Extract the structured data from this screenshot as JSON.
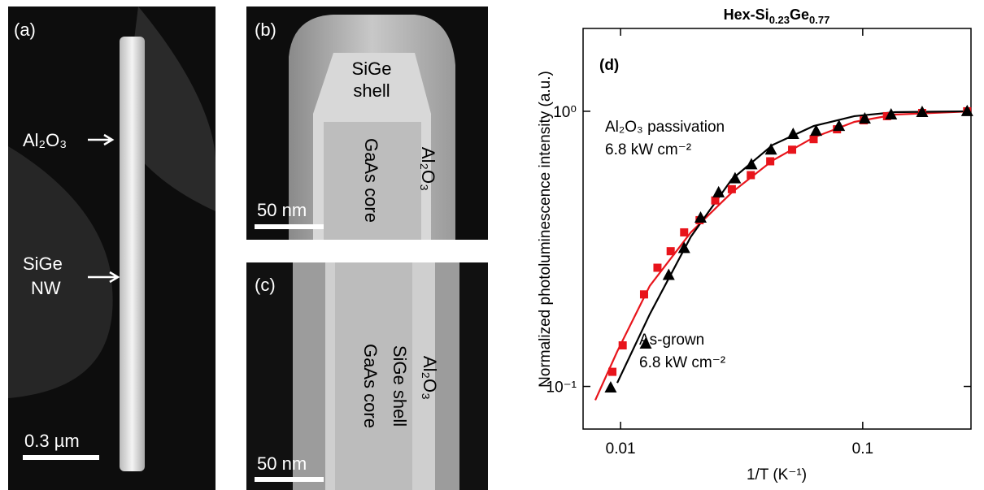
{
  "figure": {
    "panel_a": {
      "label": "(a)",
      "shell": "Al₂O₃",
      "wire_1": "SiGe",
      "wire_2": "NW",
      "scale": "0.3 µm"
    },
    "panel_b": {
      "label": "(b)",
      "shell_1": "SiGe",
      "shell_2": "shell",
      "core": "GaAs core",
      "oxide": "Al₂O₃",
      "scale": "50 nm"
    },
    "panel_c": {
      "label": "(c)",
      "oxide": "Al₂O₃",
      "shell": "SiGe shell",
      "core": "GaAs core",
      "scale": "50 nm"
    }
  },
  "chart_data": {
    "type": "scatter",
    "title": [
      "Hex-Si",
      "0.23",
      "Ge",
      "0.77"
    ],
    "panel_label": "(d)",
    "x_label": "1/T (K⁻¹)",
    "y_label": "Normalized photoluminescence intensity (a.u.)",
    "log_x": true,
    "log_y": true,
    "xlim": [
      0.007,
      0.28
    ],
    "ylim": [
      0.07,
      2
    ],
    "xticks": [
      0.01,
      0.1
    ],
    "yticks": [
      {
        "value": 0.1,
        "label": "10⁻¹"
      },
      {
        "value": 1,
        "label": "10⁰"
      }
    ],
    "annotations": [
      {
        "lines": [
          "Al₂O₃ passivation",
          "6.8 kW cm⁻²"
        ],
        "color": "#e8141b"
      },
      {
        "lines": [
          "As-grown",
          "6.8 kW cm⁻²"
        ],
        "color": "#000000"
      }
    ],
    "series": [
      {
        "color": "#e8141b",
        "x": [
          0.00786,
          0.00969,
          0.0132,
          0.0195,
          0.0288,
          0.0425,
          0.0627,
          0.0924,
          0.136,
          0.284
        ],
        "values": [
          0.0892,
          0.134,
          0.232,
          0.363,
          0.507,
          0.663,
          0.803,
          0.915,
          0.973,
          1.0
        ]
      },
      {
        "color": "#000000",
        "x": [
          0.00969,
          0.0132,
          0.0195,
          0.0288,
          0.0425,
          0.0627,
          0.0924,
          0.136,
          0.284
        ],
        "values": [
          0.103,
          0.183,
          0.35,
          0.566,
          0.755,
          0.884,
          0.96,
          0.993,
          1.0
        ]
      },
      {
        "color": "#e8141b",
        "marker": "square",
        "x": [
          0.00925,
          0.0102,
          0.0125,
          0.0142,
          0.0161,
          0.0183,
          0.0212,
          0.0246,
          0.0288,
          0.0345,
          0.0415,
          0.0511,
          0.0627,
          0.0783,
          0.101,
          0.126,
          0.176,
          0.27
        ],
        "values": [
          0.113,
          0.141,
          0.216,
          0.27,
          0.31,
          0.363,
          0.402,
          0.474,
          0.521,
          0.586,
          0.658,
          0.725,
          0.792,
          0.86,
          0.927,
          0.96,
          0.986,
          1.0
        ]
      },
      {
        "color": "#000000",
        "marker": "triangle",
        "x": [
          0.0091,
          0.0127,
          0.0158,
          0.0183,
          0.0214,
          0.0254,
          0.0297,
          0.0347,
          0.0418,
          0.0516,
          0.0642,
          0.0798,
          0.102,
          0.131,
          0.176,
          0.27
        ],
        "values": [
          0.099,
          0.143,
          0.254,
          0.318,
          0.41,
          0.507,
          0.57,
          0.641,
          0.725,
          0.826,
          0.848,
          0.884,
          0.94,
          0.973,
          0.993,
          1.0
        ]
      }
    ]
  }
}
